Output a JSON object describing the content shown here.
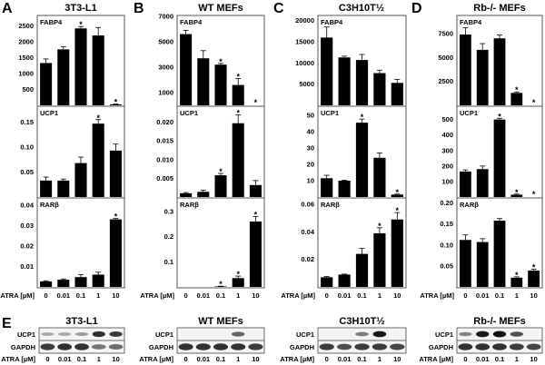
{
  "chart_data": [
    {
      "type": "bar",
      "panel": "A",
      "title": "3T3-L1",
      "xlabel": "ATRA [µM]",
      "categories": [
        "0",
        "0.01",
        "0.1",
        "1",
        "10"
      ],
      "subplots": [
        {
          "gene": "FABP4",
          "ylim": [
            0,
            2800
          ],
          "yticks": [
            500,
            1000,
            1500,
            2000,
            2500
          ],
          "tick_labels": [
            "500",
            "1000",
            "1500",
            "2000",
            "2500"
          ],
          "values": [
            1330,
            1760,
            2420,
            2200,
            30
          ],
          "errors": [
            130,
            80,
            60,
            250,
            10
          ],
          "significant": [
            false,
            false,
            true,
            false,
            true
          ]
        },
        {
          "gene": "UCP1",
          "ylim": [
            0,
            0.18
          ],
          "yticks": [
            0.05,
            0.1,
            0.15
          ],
          "tick_labels": [
            "0.05",
            "0.10",
            "0.15"
          ],
          "values": [
            0.033,
            0.033,
            0.068,
            0.147,
            0.093
          ],
          "errors": [
            0.007,
            0.003,
            0.012,
            0.008,
            0.013
          ],
          "significant": [
            false,
            false,
            false,
            true,
            false
          ]
        },
        {
          "gene": "RARβ",
          "ylim": [
            0,
            0.043
          ],
          "yticks": [
            0.01,
            0.02,
            0.03,
            0.04
          ],
          "tick_labels": [
            "0.01",
            "0.02",
            "0.03",
            "0.04"
          ],
          "values": [
            0.0027,
            0.0035,
            0.0048,
            0.006,
            0.033
          ],
          "errors": [
            0.0003,
            0.0004,
            0.0012,
            0.0012,
            0.0004
          ],
          "significant": [
            false,
            false,
            false,
            false,
            true
          ]
        }
      ]
    },
    {
      "type": "bar",
      "panel": "B",
      "title": "WT MEFs",
      "xlabel": "ATRA [µM]",
      "categories": [
        "0",
        "0.01",
        "0.1",
        "1",
        "10"
      ],
      "subplots": [
        {
          "gene": "FABP4",
          "ylim": [
            0,
            7000
          ],
          "yticks": [
            1000,
            3000,
            5000,
            7000
          ],
          "tick_labels": [
            "1000",
            "3000",
            "5000",
            "7000"
          ],
          "values": [
            5600,
            3700,
            3200,
            1600,
            0
          ],
          "errors": [
            300,
            600,
            100,
            500,
            0
          ],
          "significant": [
            false,
            false,
            true,
            true,
            true
          ]
        },
        {
          "gene": "UCP1",
          "ylim": [
            0,
            0.024
          ],
          "yticks": [
            0.005,
            0.01,
            0.015,
            0.02
          ],
          "tick_labels": [
            "0.005",
            "0.010",
            "0.015",
            "0.020"
          ],
          "values": [
            0.001,
            0.0014,
            0.0058,
            0.0197,
            0.0032
          ],
          "errors": [
            0.0002,
            0.0004,
            0.0005,
            0.0022,
            0.0012
          ],
          "significant": [
            false,
            false,
            true,
            true,
            false
          ]
        },
        {
          "gene": "RARβ",
          "ylim": [
            0,
            0.35
          ],
          "yticks": [
            0.1,
            0.2,
            0.3
          ],
          "tick_labels": [
            "0.1",
            "0.2",
            "0.3"
          ],
          "values": [
            0,
            0,
            0.002,
            0.035,
            0.26
          ],
          "errors": [
            0,
            0,
            0.001,
            0.008,
            0.02
          ],
          "significant": [
            false,
            false,
            true,
            true,
            true
          ]
        }
      ]
    },
    {
      "type": "bar",
      "panel": "C",
      "title": "C3H10T½",
      "xlabel": "ATRA [µM]",
      "categories": [
        "0",
        "0.01",
        "0.1",
        "1",
        "10"
      ],
      "subplots": [
        {
          "gene": "FABP4",
          "ylim": [
            0,
            21000
          ],
          "yticks": [
            5000,
            10000,
            15000,
            20000
          ],
          "tick_labels": [
            "5000",
            "10000",
            "15000",
            "20000"
          ],
          "values": [
            16000,
            11300,
            10700,
            7600,
            5300
          ],
          "errors": [
            2500,
            300,
            1300,
            700,
            800
          ],
          "significant": [
            false,
            false,
            false,
            false,
            false
          ]
        },
        {
          "gene": "UCP1",
          "ylim": [
            0,
            55
          ],
          "yticks": [
            10,
            20,
            30,
            40,
            50
          ],
          "tick_labels": [
            "10",
            "20",
            "30",
            "40",
            "50"
          ],
          "values": [
            11.5,
            10.0,
            45.5,
            24.0,
            1.5
          ],
          "errors": [
            1.8,
            0.3,
            2.2,
            3.0,
            0.3
          ],
          "significant": [
            false,
            false,
            true,
            false,
            true
          ]
        },
        {
          "gene": "RARβ",
          "ylim": [
            0,
            0.064
          ],
          "yticks": [
            0.02,
            0.04,
            0.06
          ],
          "tick_labels": [
            "0.02",
            "0.04",
            "0.06"
          ],
          "values": [
            0.007,
            0.009,
            0.024,
            0.039,
            0.049
          ],
          "errors": [
            0.0005,
            0.0003,
            0.004,
            0.004,
            0.005
          ],
          "significant": [
            false,
            false,
            false,
            true,
            true
          ]
        }
      ]
    },
    {
      "type": "bar",
      "panel": "D",
      "title": "Rb-/- MEFs",
      "xlabel": "ATRA [µM]",
      "categories": [
        "0",
        "0.01",
        "0.1",
        "1",
        "10"
      ],
      "subplots": [
        {
          "gene": "FABP4",
          "ylim": [
            0,
            9300
          ],
          "yticks": [
            2500,
            5000,
            7500
          ],
          "tick_labels": [
            "2500",
            "5000",
            "7500"
          ],
          "values": [
            7400,
            5800,
            7000,
            1300,
            0
          ],
          "errors": [
            700,
            650,
            350,
            100,
            0
          ],
          "significant": [
            false,
            false,
            false,
            true,
            true
          ]
        },
        {
          "gene": "UCP1",
          "ylim": [
            0,
            580
          ],
          "yticks": [
            100,
            200,
            300,
            400,
            500
          ],
          "tick_labels": [
            "100",
            "200",
            "300",
            "400",
            "500"
          ],
          "values": [
            165,
            180,
            500,
            15,
            0
          ],
          "errors": [
            10,
            20,
            8,
            4,
            0
          ],
          "significant": [
            false,
            false,
            true,
            true,
            true
          ]
        },
        {
          "gene": "RARβ",
          "ylim": [
            0,
            0.21
          ],
          "yticks": [
            0.05,
            0.1,
            0.15,
            0.2
          ],
          "tick_labels": [
            "0.05",
            "0.10",
            "0.15",
            "0.20"
          ],
          "values": [
            0.112,
            0.107,
            0.158,
            0.022,
            0.039
          ],
          "errors": [
            0.012,
            0.008,
            0.005,
            0.002,
            0.003
          ],
          "significant": [
            false,
            false,
            false,
            true,
            true
          ]
        }
      ]
    }
  ],
  "panels": [
    {
      "letter": "A",
      "title": "3T3-L1"
    },
    {
      "letter": "B",
      "title": "WT MEFs"
    },
    {
      "letter": "C",
      "title": "C3H10T½"
    },
    {
      "letter": "D",
      "title": "Rb-/- MEFs"
    }
  ],
  "xaxis_label": "ATRA [µM]",
  "star_symbol": "*",
  "blots": {
    "letter": "E",
    "row_labels": [
      "UCP1",
      "GAPDH"
    ],
    "xaxis_label": "ATRA [µM]",
    "lanes": [
      "0",
      "0.01",
      "0.1",
      "1",
      "10"
    ],
    "panels": [
      {
        "title": "3T3-L1",
        "ucp1_intensity": [
          0.3,
          0.3,
          0.35,
          0.85,
          0.8
        ],
        "gapdh_intensity": [
          0.85,
          0.9,
          0.9,
          0.55,
          0.6
        ]
      },
      {
        "title": "WT MEFs",
        "ucp1_intensity": [
          0,
          0,
          0,
          0.6,
          0
        ],
        "gapdh_intensity": [
          0.9,
          0.9,
          0.9,
          0.9,
          0.85
        ]
      },
      {
        "title": "C3H10T½",
        "ucp1_intensity": [
          0,
          0,
          0.5,
          0.95,
          0
        ],
        "gapdh_intensity": [
          0.85,
          0.75,
          0.85,
          0.85,
          0.8
        ]
      },
      {
        "title": "Rb-/- MEFs",
        "ucp1_intensity": [
          0.45,
          0.95,
          1.0,
          0.7,
          0
        ],
        "gapdh_intensity": [
          0.9,
          0.9,
          0.9,
          0.85,
          0.8
        ]
      }
    ]
  }
}
